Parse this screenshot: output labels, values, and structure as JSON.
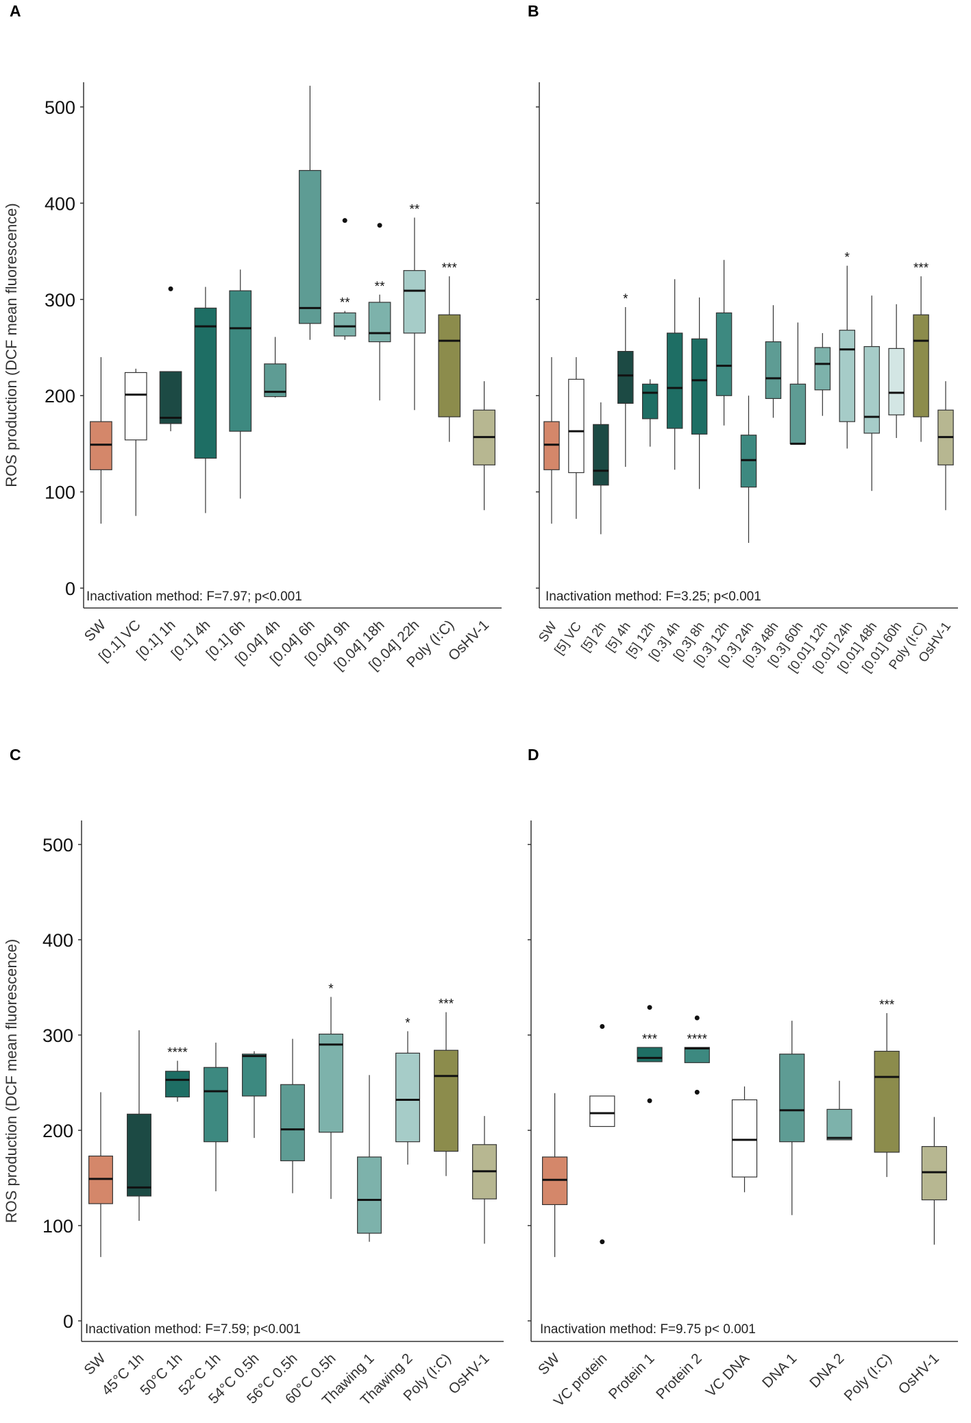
{
  "figure": {
    "y_axis_label": "ROS production (DCF mean fluorescence)"
  },
  "colors": {
    "sw": "#d4876a",
    "vc": "#ffffff",
    "dark": "#1c4a44",
    "teal1": "#1e6e64",
    "teal2": "#3d8980",
    "teal3": "#5e9c94",
    "teal4": "#7db2ab",
    "teal5": "#a6ccc8",
    "teal6": "#d3e6e4",
    "polyic": "#8c8c4c",
    "oshv": "#b7b791",
    "line": "#333333",
    "median": "#111111"
  },
  "chart_data": [
    {
      "panel": "A",
      "type": "box",
      "annotation": "Inactivation method: F=7.97; p<0.001",
      "ylim": [
        0,
        520
      ],
      "yticks": [
        0,
        100,
        200,
        300,
        400,
        500
      ],
      "ylabel": "ROS production (DCF mean fluorescence)",
      "categories": [
        "SW",
        "[0.1] VC",
        "[0.1] 1h",
        "[0.1] 4h",
        "[0.1] 6h",
        "[0.04] 4h",
        "[0.04] 6h",
        "[0.04] 9h",
        "[0.04] 18h",
        "[0.04] 22h",
        "Poly (I:C)",
        "OsHV-1"
      ],
      "boxes": [
        {
          "min": 67,
          "q1": 123,
          "median": 149,
          "q3": 173,
          "max": 240,
          "outliers": [],
          "color": "#d4876a",
          "sig": ""
        },
        {
          "min": 75,
          "q1": 154,
          "median": 201,
          "q3": 224,
          "max": 228,
          "outliers": [],
          "color": "#ffffff",
          "sig": ""
        },
        {
          "min": 163,
          "q1": 171,
          "median": 177,
          "q3": 225,
          "max": 225,
          "outliers": [
            311
          ],
          "color": "#1c4a44",
          "sig": ""
        },
        {
          "min": 78,
          "q1": 135,
          "median": 272,
          "q3": 291,
          "max": 313,
          "outliers": [],
          "color": "#1e6e64",
          "sig": ""
        },
        {
          "min": 93,
          "q1": 163,
          "median": 270,
          "q3": 309,
          "max": 331,
          "outliers": [],
          "color": "#3d8980",
          "sig": ""
        },
        {
          "min": 198,
          "q1": 199,
          "median": 204,
          "q3": 233,
          "max": 261,
          "outliers": [],
          "color": "#5e9c94",
          "sig": ""
        },
        {
          "min": 258,
          "q1": 275,
          "median": 291,
          "q3": 434,
          "max": 522,
          "outliers": [],
          "color": "#5e9c94",
          "sig": ""
        },
        {
          "min": 258,
          "q1": 262,
          "median": 272,
          "q3": 286,
          "max": 288,
          "outliers": [
            382
          ],
          "color": "#7db2ab",
          "sig": "**"
        },
        {
          "min": 195,
          "q1": 256,
          "median": 265,
          "q3": 297,
          "max": 305,
          "outliers": [
            377
          ],
          "color": "#7db2ab",
          "sig": "**"
        },
        {
          "min": 185,
          "q1": 265,
          "median": 309,
          "q3": 330,
          "max": 385,
          "outliers": [],
          "color": "#a6ccc8",
          "sig": "**"
        },
        {
          "min": 152,
          "q1": 178,
          "median": 257,
          "q3": 284,
          "max": 324,
          "outliers": [],
          "color": "#8c8c4c",
          "sig": "***"
        },
        {
          "min": 81,
          "q1": 128,
          "median": 157,
          "q3": 185,
          "max": 215,
          "outliers": [],
          "color": "#b7b791",
          "sig": ""
        }
      ]
    },
    {
      "panel": "B",
      "type": "box",
      "annotation": "Inactivation method: F=3.25; p<0.001",
      "ylim": [
        0,
        520
      ],
      "yticks": [
        0,
        100,
        200,
        300,
        400,
        500
      ],
      "ylabel": "",
      "categories": [
        "SW",
        "[5] VC",
        "[5] 2h",
        "[5] 4h",
        "[5] 12h",
        "[0.3] 4h",
        "[0.3] 8h",
        "[0.3] 12h",
        "[0.3] 24h",
        "[0.3] 48h",
        "[0.3] 60h",
        "[0.01] 12h",
        "[0.01] 24h",
        "[0.01] 48h",
        "[0.01] 60h",
        "Poly (I:C)",
        "OsHV-1"
      ],
      "boxes": [
        {
          "min": 67,
          "q1": 123,
          "median": 149,
          "q3": 173,
          "max": 240,
          "outliers": [],
          "color": "#d4876a",
          "sig": ""
        },
        {
          "min": 72,
          "q1": 120,
          "median": 163,
          "q3": 217,
          "max": 240,
          "outliers": [],
          "color": "#ffffff",
          "sig": ""
        },
        {
          "min": 56,
          "q1": 107,
          "median": 122,
          "q3": 170,
          "max": 193,
          "outliers": [],
          "color": "#1c4a44",
          "sig": ""
        },
        {
          "min": 126,
          "q1": 192,
          "median": 221,
          "q3": 246,
          "max": 292,
          "outliers": [],
          "color": "#1c4a44",
          "sig": "*"
        },
        {
          "min": 147,
          "q1": 176,
          "median": 203,
          "q3": 212,
          "max": 217,
          "outliers": [],
          "color": "#1e6e64",
          "sig": ""
        },
        {
          "min": 123,
          "q1": 166,
          "median": 208,
          "q3": 265,
          "max": 321,
          "outliers": [],
          "color": "#1e6e64",
          "sig": ""
        },
        {
          "min": 103,
          "q1": 160,
          "median": 216,
          "q3": 259,
          "max": 302,
          "outliers": [],
          "color": "#1e6e64",
          "sig": ""
        },
        {
          "min": 169,
          "q1": 200,
          "median": 231,
          "q3": 286,
          "max": 341,
          "outliers": [],
          "color": "#3d8980",
          "sig": ""
        },
        {
          "min": 47,
          "q1": 105,
          "median": 133,
          "q3": 159,
          "max": 200,
          "outliers": [],
          "color": "#3d8980",
          "sig": ""
        },
        {
          "min": 177,
          "q1": 197,
          "median": 218,
          "q3": 256,
          "max": 294,
          "outliers": [],
          "color": "#5e9c94",
          "sig": ""
        },
        {
          "min": 150,
          "q1": 150,
          "median": 150,
          "q3": 212,
          "max": 276,
          "outliers": [],
          "color": "#5e9c94",
          "sig": ""
        },
        {
          "min": 179,
          "q1": 206,
          "median": 233,
          "q3": 250,
          "max": 265,
          "outliers": [],
          "color": "#7db2ab",
          "sig": ""
        },
        {
          "min": 145,
          "q1": 173,
          "median": 248,
          "q3": 268,
          "max": 335,
          "outliers": [],
          "color": "#a6ccc8",
          "sig": "*"
        },
        {
          "min": 101,
          "q1": 161,
          "median": 178,
          "q3": 251,
          "max": 304,
          "outliers": [],
          "color": "#a6ccc8",
          "sig": ""
        },
        {
          "min": 156,
          "q1": 180,
          "median": 203,
          "q3": 249,
          "max": 295,
          "outliers": [],
          "color": "#d3e6e4",
          "sig": ""
        },
        {
          "min": 152,
          "q1": 178,
          "median": 257,
          "q3": 284,
          "max": 324,
          "outliers": [],
          "color": "#8c8c4c",
          "sig": "***"
        },
        {
          "min": 81,
          "q1": 128,
          "median": 157,
          "q3": 185,
          "max": 215,
          "outliers": [],
          "color": "#b7b791",
          "sig": ""
        }
      ]
    },
    {
      "panel": "C",
      "type": "box",
      "annotation": "Inactivation method: F=7.59; p<0.001",
      "ylim": [
        0,
        520
      ],
      "yticks": [
        0,
        100,
        200,
        300,
        400,
        500
      ],
      "ylabel": "ROS production (DCF mean fluorescence)",
      "categories": [
        "SW",
        "45°C 1h",
        "50°C 1h",
        "52°C 1h",
        "54°C 0.5h",
        "56°C 0.5h",
        "60°C 0.5h",
        "Thawing 1",
        "Thawing 2",
        "Poly (I:C)",
        "OsHV-1"
      ],
      "boxes": [
        {
          "min": 67,
          "q1": 123,
          "median": 149,
          "q3": 173,
          "max": 240,
          "outliers": [],
          "color": "#d4876a",
          "sig": ""
        },
        {
          "min": 105,
          "q1": 131,
          "median": 140,
          "q3": 217,
          "max": 305,
          "outliers": [],
          "color": "#1c4a44",
          "sig": ""
        },
        {
          "min": 230,
          "q1": 235,
          "median": 253,
          "q3": 262,
          "max": 273,
          "outliers": [],
          "color": "#1e6e64",
          "sig": "****"
        },
        {
          "min": 136,
          "q1": 188,
          "median": 241,
          "q3": 266,
          "max": 292,
          "outliers": [],
          "color": "#3d8980",
          "sig": ""
        },
        {
          "min": 192,
          "q1": 236,
          "median": 278,
          "q3": 280,
          "max": 283,
          "outliers": [],
          "color": "#3d8980",
          "sig": ""
        },
        {
          "min": 134,
          "q1": 168,
          "median": 201,
          "q3": 248,
          "max": 296,
          "outliers": [],
          "color": "#5e9c94",
          "sig": ""
        },
        {
          "min": 128,
          "q1": 198,
          "median": 290,
          "q3": 301,
          "max": 340,
          "outliers": [],
          "color": "#7db2ab",
          "sig": "*"
        },
        {
          "min": 83,
          "q1": 92,
          "median": 127,
          "q3": 172,
          "max": 258,
          "outliers": [],
          "color": "#7db2ab",
          "sig": ""
        },
        {
          "min": 164,
          "q1": 188,
          "median": 232,
          "q3": 281,
          "max": 304,
          "outliers": [],
          "color": "#a6ccc8",
          "sig": "*"
        },
        {
          "min": 152,
          "q1": 178,
          "median": 257,
          "q3": 284,
          "max": 324,
          "outliers": [],
          "color": "#8c8c4c",
          "sig": "***"
        },
        {
          "min": 81,
          "q1": 128,
          "median": 157,
          "q3": 185,
          "max": 215,
          "outliers": [],
          "color": "#b7b791",
          "sig": ""
        }
      ]
    },
    {
      "panel": "D",
      "type": "box",
      "annotation": "Inactivation method: F=9.75 p< 0.001",
      "ylim": [
        0,
        520
      ],
      "yticks": [
        0,
        100,
        200,
        300,
        400,
        500
      ],
      "ylabel": "",
      "categories": [
        "SW",
        "VC protein",
        "Protein 1",
        "Protein 2",
        "VC DNA",
        "DNA 1",
        "DNA 2",
        "Poly (I:C)",
        "OsHV-1"
      ],
      "boxes": [
        {
          "min": 67,
          "q1": 122,
          "median": 148,
          "q3": 172,
          "max": 239,
          "outliers": [],
          "color": "#d4876a",
          "sig": ""
        },
        {
          "min": 204,
          "q1": 204,
          "median": 218,
          "q3": 236,
          "max": 236,
          "outliers": [
            309,
            83
          ],
          "color": "#ffffff",
          "sig": ""
        },
        {
          "min": 272,
          "q1": 272,
          "median": 276,
          "q3": 287,
          "max": 287,
          "outliers": [
            329,
            231
          ],
          "color": "#1e6e64",
          "sig": "***"
        },
        {
          "min": 271,
          "q1": 271,
          "median": 286,
          "q3": 287,
          "max": 287,
          "outliers": [
            318,
            240
          ],
          "color": "#3d8980",
          "sig": "****"
        },
        {
          "min": 135,
          "q1": 151,
          "median": 190,
          "q3": 232,
          "max": 246,
          "outliers": [],
          "color": "#ffffff",
          "sig": ""
        },
        {
          "min": 111,
          "q1": 188,
          "median": 221,
          "q3": 280,
          "max": 315,
          "outliers": [],
          "color": "#5e9c94",
          "sig": ""
        },
        {
          "min": 190,
          "q1": 190,
          "median": 192,
          "q3": 222,
          "max": 252,
          "outliers": [],
          "color": "#7db2ab",
          "sig": ""
        },
        {
          "min": 151,
          "q1": 177,
          "median": 256,
          "q3": 283,
          "max": 323,
          "outliers": [],
          "color": "#8c8c4c",
          "sig": "***"
        },
        {
          "min": 80,
          "q1": 127,
          "median": 156,
          "q3": 183,
          "max": 214,
          "outliers": [],
          "color": "#b7b791",
          "sig": ""
        }
      ]
    }
  ]
}
